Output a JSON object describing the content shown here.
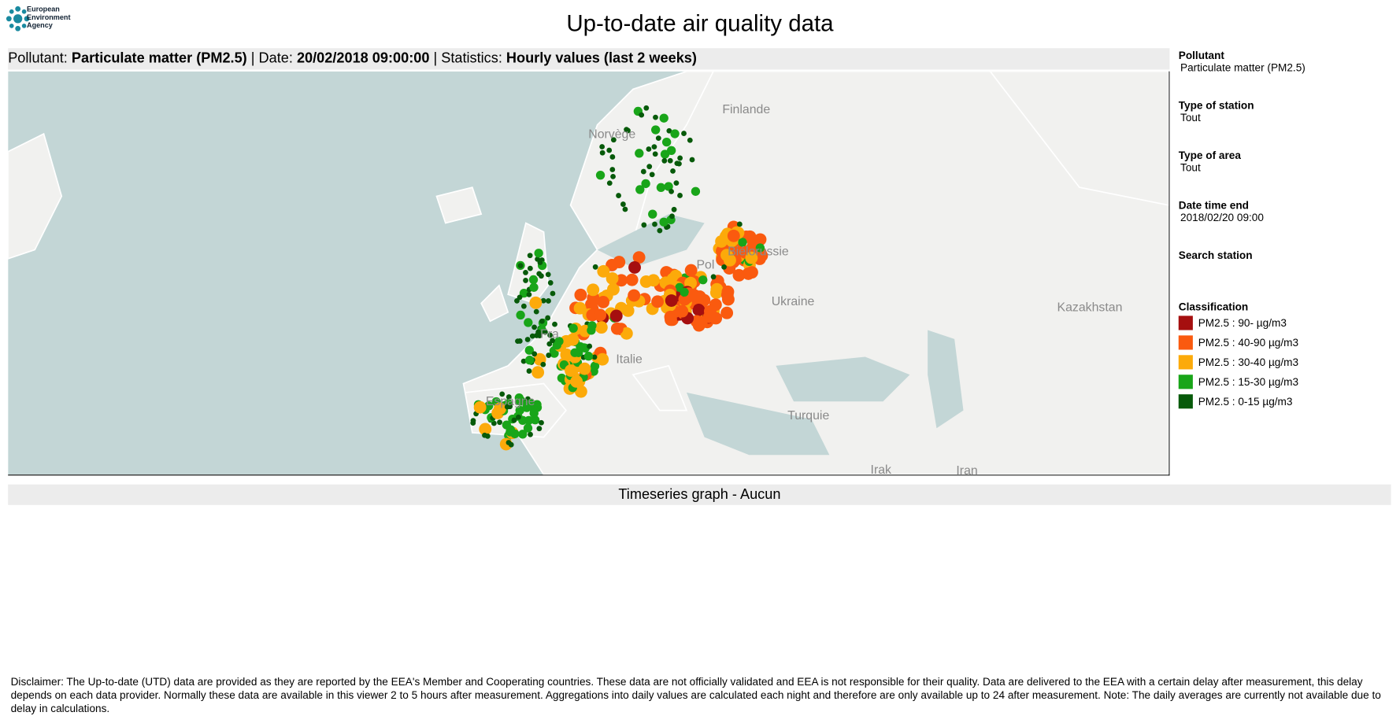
{
  "header": {
    "logo_text": "European Environment Agency",
    "title": "Up-to-date air quality data"
  },
  "info_bar": {
    "pollutant_label": "Pollutant:",
    "pollutant": "Particulate matter (PM2.5)",
    "date_label": "| Date:",
    "date": "20/02/2018 09:00:00",
    "statistics_label": "| Statistics:",
    "statistics": "Hourly values (last 2 weeks)"
  },
  "map": {
    "labels": [
      "Finlande",
      "Norvège",
      "Biélorussie",
      "Pol",
      "Ukraine",
      "Kazakhstan",
      "Fra",
      "Italie",
      "Espagne",
      "Turquie",
      "Irak",
      "Iran"
    ]
  },
  "sidebar": {
    "sections": [
      {
        "label": "Pollutant",
        "value": "Particulate matter (PM2.5)"
      },
      {
        "label": "Type of station",
        "value": "Tout"
      },
      {
        "label": "Type of area",
        "value": "Tout"
      },
      {
        "label": "Date time end",
        "value": "2018/02/20 09:00"
      }
    ],
    "search_label": "Search station",
    "classification_title": "Classification",
    "legend": [
      {
        "label": "PM2.5 : 90- µg/m3",
        "color": "#a50f0f"
      },
      {
        "label": "PM2.5 : 40-90 µg/m3",
        "color": "#fa5a0f"
      },
      {
        "label": "PM2.5 : 30-40 µg/m3",
        "color": "#fcaa0a"
      },
      {
        "label": "PM2.5 : 15-30 µg/m3",
        "color": "#19a519"
      },
      {
        "label": "PM2.5 : 0-15 µg/m3",
        "color": "#075a0a"
      }
    ]
  },
  "timeseries": {
    "title": "Timeseries graph - Aucun"
  },
  "disclaimer": "Disclaimer:  The Up-to-date (UTD) data are provided as they are reported by the EEA's Member and Cooperating countries. These data are not officially validated and EEA is not responsible for their quality. Data are delivered to the EEA with a certain delay after measurement, this delay depends on each data provider. Normally these data are available in this viewer 2 to 5 hours after measurement. Aggregations into daily values are calculated each night and therefore are only available up to 24 after measurement. Note: The daily averages are currently not available due to delay in calculations."
}
